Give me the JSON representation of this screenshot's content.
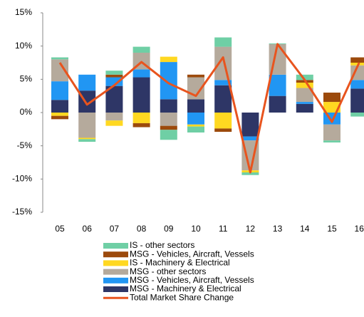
{
  "chart_data": {
    "type": "bar",
    "categories": [
      "05",
      "06",
      "07",
      "08",
      "09",
      "10",
      "11",
      "12",
      "13",
      "14",
      "15",
      "16"
    ],
    "ylim": [
      -15,
      15
    ],
    "yticks": [
      {
        "value": -15,
        "label": "-15%"
      },
      {
        "value": -10,
        "label": "-10%"
      },
      {
        "value": -5,
        "label": "-5%"
      },
      {
        "value": 0,
        "label": "0%"
      },
      {
        "value": 5,
        "label": "5%"
      },
      {
        "value": 10,
        "label": "10%"
      },
      {
        "value": 15,
        "label": "15%"
      }
    ],
    "grid": false,
    "series": [
      {
        "name": "IS - other sectors",
        "color": "#6fcfa5",
        "values": [
          0.3,
          -0.4,
          0.6,
          0.9,
          -1.5,
          -0.9,
          1.4,
          -0.4,
          0.1,
          0.8,
          -0.3,
          -0.6
        ]
      },
      {
        "name": "MSG - Vehicles, Aircraft, Vessels",
        "color": "#9c4a0c",
        "values": [
          -0.5,
          0,
          0.4,
          -0.6,
          -0.6,
          0.4,
          -0.5,
          0,
          0,
          0.4,
          1.4,
          0.8
        ]
      },
      {
        "name": "IS - Machinery & Electrical",
        "color": "#ffd821",
        "values": [
          -0.5,
          -0.2,
          -0.8,
          -1.6,
          0.8,
          -0.3,
          -2.4,
          -0.3,
          0,
          0.8,
          1.6,
          0.4
        ]
      },
      {
        "name": "MSG - other sectors",
        "color": "#b5aa9c",
        "values": [
          3.3,
          -3.8,
          -1.2,
          2.5,
          -2.0,
          3.3,
          5.0,
          -4.5,
          4.6,
          2.1,
          -2.4,
          2.2
        ]
      },
      {
        "name": "MSG - Vehicles, Aircraft, Vessels",
        "color": "#2196f3",
        "values": [
          2.8,
          2.4,
          1.3,
          1.2,
          5.6,
          -1.8,
          0.8,
          -0.6,
          3.2,
          0.3,
          -1.8,
          1.3
        ]
      },
      {
        "name": "MSG - Machinery & Electrical",
        "color": "#2e3666",
        "values": [
          1.9,
          3.3,
          4.0,
          5.3,
          2.0,
          2.0,
          4.1,
          -3.6,
          2.5,
          1.3,
          0,
          3.6
        ]
      },
      {
        "name": "Total Market Share Change",
        "type": "line",
        "color": "#e8541e",
        "values": [
          7.5,
          1.2,
          4.1,
          7.6,
          4.4,
          2.5,
          8.3,
          -9.0,
          10.3,
          4.9,
          -1.4,
          7.5
        ]
      }
    ]
  }
}
